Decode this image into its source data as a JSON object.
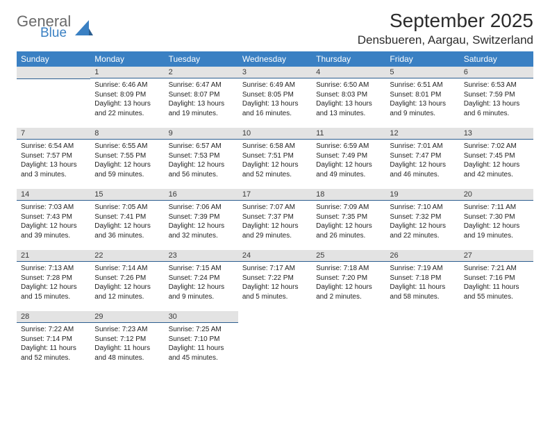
{
  "logo": {
    "word1": "General",
    "word2": "Blue"
  },
  "title": "September 2025",
  "location": "Densbueren, Aargau, Switzerland",
  "calendar": {
    "day_headers": [
      "Sunday",
      "Monday",
      "Tuesday",
      "Wednesday",
      "Thursday",
      "Friday",
      "Saturday"
    ],
    "header_bg": "#3a80c3",
    "header_fg": "#ffffff",
    "daybar_bg": "#e3e3e3",
    "daybar_border": "#2b5d8f",
    "text_color": "#222222",
    "font_size_body": 10,
    "font_size_header": 12,
    "weeks": [
      [
        null,
        {
          "n": "1",
          "sr": "Sunrise: 6:46 AM",
          "ss": "Sunset: 8:09 PM",
          "dl": "Daylight: 13 hours and 22 minutes."
        },
        {
          "n": "2",
          "sr": "Sunrise: 6:47 AM",
          "ss": "Sunset: 8:07 PM",
          "dl": "Daylight: 13 hours and 19 minutes."
        },
        {
          "n": "3",
          "sr": "Sunrise: 6:49 AM",
          "ss": "Sunset: 8:05 PM",
          "dl": "Daylight: 13 hours and 16 minutes."
        },
        {
          "n": "4",
          "sr": "Sunrise: 6:50 AM",
          "ss": "Sunset: 8:03 PM",
          "dl": "Daylight: 13 hours and 13 minutes."
        },
        {
          "n": "5",
          "sr": "Sunrise: 6:51 AM",
          "ss": "Sunset: 8:01 PM",
          "dl": "Daylight: 13 hours and 9 minutes."
        },
        {
          "n": "6",
          "sr": "Sunrise: 6:53 AM",
          "ss": "Sunset: 7:59 PM",
          "dl": "Daylight: 13 hours and 6 minutes."
        }
      ],
      [
        {
          "n": "7",
          "sr": "Sunrise: 6:54 AM",
          "ss": "Sunset: 7:57 PM",
          "dl": "Daylight: 13 hours and 3 minutes."
        },
        {
          "n": "8",
          "sr": "Sunrise: 6:55 AM",
          "ss": "Sunset: 7:55 PM",
          "dl": "Daylight: 12 hours and 59 minutes."
        },
        {
          "n": "9",
          "sr": "Sunrise: 6:57 AM",
          "ss": "Sunset: 7:53 PM",
          "dl": "Daylight: 12 hours and 56 minutes."
        },
        {
          "n": "10",
          "sr": "Sunrise: 6:58 AM",
          "ss": "Sunset: 7:51 PM",
          "dl": "Daylight: 12 hours and 52 minutes."
        },
        {
          "n": "11",
          "sr": "Sunrise: 6:59 AM",
          "ss": "Sunset: 7:49 PM",
          "dl": "Daylight: 12 hours and 49 minutes."
        },
        {
          "n": "12",
          "sr": "Sunrise: 7:01 AM",
          "ss": "Sunset: 7:47 PM",
          "dl": "Daylight: 12 hours and 46 minutes."
        },
        {
          "n": "13",
          "sr": "Sunrise: 7:02 AM",
          "ss": "Sunset: 7:45 PM",
          "dl": "Daylight: 12 hours and 42 minutes."
        }
      ],
      [
        {
          "n": "14",
          "sr": "Sunrise: 7:03 AM",
          "ss": "Sunset: 7:43 PM",
          "dl": "Daylight: 12 hours and 39 minutes."
        },
        {
          "n": "15",
          "sr": "Sunrise: 7:05 AM",
          "ss": "Sunset: 7:41 PM",
          "dl": "Daylight: 12 hours and 36 minutes."
        },
        {
          "n": "16",
          "sr": "Sunrise: 7:06 AM",
          "ss": "Sunset: 7:39 PM",
          "dl": "Daylight: 12 hours and 32 minutes."
        },
        {
          "n": "17",
          "sr": "Sunrise: 7:07 AM",
          "ss": "Sunset: 7:37 PM",
          "dl": "Daylight: 12 hours and 29 minutes."
        },
        {
          "n": "18",
          "sr": "Sunrise: 7:09 AM",
          "ss": "Sunset: 7:35 PM",
          "dl": "Daylight: 12 hours and 26 minutes."
        },
        {
          "n": "19",
          "sr": "Sunrise: 7:10 AM",
          "ss": "Sunset: 7:32 PM",
          "dl": "Daylight: 12 hours and 22 minutes."
        },
        {
          "n": "20",
          "sr": "Sunrise: 7:11 AM",
          "ss": "Sunset: 7:30 PM",
          "dl": "Daylight: 12 hours and 19 minutes."
        }
      ],
      [
        {
          "n": "21",
          "sr": "Sunrise: 7:13 AM",
          "ss": "Sunset: 7:28 PM",
          "dl": "Daylight: 12 hours and 15 minutes."
        },
        {
          "n": "22",
          "sr": "Sunrise: 7:14 AM",
          "ss": "Sunset: 7:26 PM",
          "dl": "Daylight: 12 hours and 12 minutes."
        },
        {
          "n": "23",
          "sr": "Sunrise: 7:15 AM",
          "ss": "Sunset: 7:24 PM",
          "dl": "Daylight: 12 hours and 9 minutes."
        },
        {
          "n": "24",
          "sr": "Sunrise: 7:17 AM",
          "ss": "Sunset: 7:22 PM",
          "dl": "Daylight: 12 hours and 5 minutes."
        },
        {
          "n": "25",
          "sr": "Sunrise: 7:18 AM",
          "ss": "Sunset: 7:20 PM",
          "dl": "Daylight: 12 hours and 2 minutes."
        },
        {
          "n": "26",
          "sr": "Sunrise: 7:19 AM",
          "ss": "Sunset: 7:18 PM",
          "dl": "Daylight: 11 hours and 58 minutes."
        },
        {
          "n": "27",
          "sr": "Sunrise: 7:21 AM",
          "ss": "Sunset: 7:16 PM",
          "dl": "Daylight: 11 hours and 55 minutes."
        }
      ],
      [
        {
          "n": "28",
          "sr": "Sunrise: 7:22 AM",
          "ss": "Sunset: 7:14 PM",
          "dl": "Daylight: 11 hours and 52 minutes."
        },
        {
          "n": "29",
          "sr": "Sunrise: 7:23 AM",
          "ss": "Sunset: 7:12 PM",
          "dl": "Daylight: 11 hours and 48 minutes."
        },
        {
          "n": "30",
          "sr": "Sunrise: 7:25 AM",
          "ss": "Sunset: 7:10 PM",
          "dl": "Daylight: 11 hours and 45 minutes."
        },
        null,
        null,
        null,
        null
      ]
    ]
  }
}
